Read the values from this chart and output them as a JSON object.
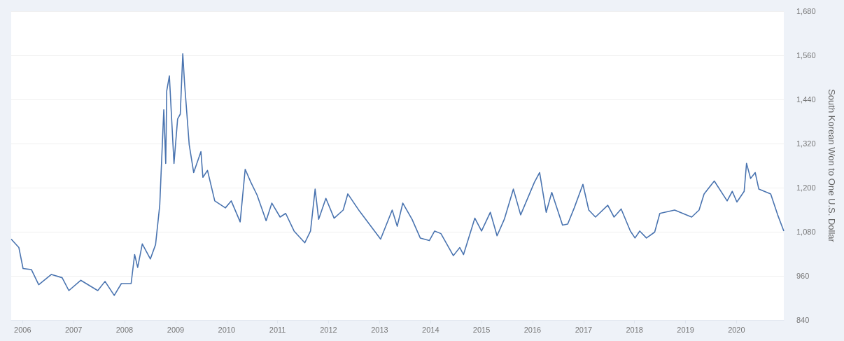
{
  "chart_data": {
    "type": "line",
    "y2label": "South Korean Won to One U.S. Dollar",
    "x": [
      "2005-10-11",
      "2005-12-05",
      "2006-01-04",
      "2006-03-05",
      "2006-04-26",
      "2006-07-26",
      "2006-10-11",
      "2006-11-28",
      "2007-02-21",
      "2007-06-23",
      "2007-08-14",
      "2007-10-19",
      "2007-12-09",
      "2008-02-17",
      "2008-03-13",
      "2008-04-04",
      "2008-05-07",
      "2008-07-04",
      "2008-08-10",
      "2008-09-09",
      "2008-10-08",
      "2008-10-22",
      "2008-10-29",
      "2008-11-17",
      "2008-12-20",
      "2009-01-15",
      "2009-02-03",
      "2009-02-21",
      "2009-03-05",
      "2009-04-08",
      "2009-05-10",
      "2009-07-01",
      "2009-07-15",
      "2009-08-17",
      "2009-10-08",
      "2009-12-23",
      "2010-02-03",
      "2010-04-08",
      "2010-05-14",
      "2010-06-23",
      "2010-08-07",
      "2010-10-11",
      "2010-11-21",
      "2011-01-19",
      "2011-02-28",
      "2011-04-29",
      "2011-07-15",
      "2011-08-25",
      "2011-09-27",
      "2011-10-22",
      "2011-12-13",
      "2012-02-10",
      "2012-04-15",
      "2012-05-18",
      "2012-08-10",
      "2013-01-08",
      "2013-04-01",
      "2013-05-07",
      "2013-06-16",
      "2013-08-21",
      "2013-10-19",
      "2013-12-23",
      "2014-01-30",
      "2014-03-16",
      "2014-06-13",
      "2014-07-29",
      "2014-08-25",
      "2014-11-14",
      "2015-01-01",
      "2015-03-05",
      "2015-04-22",
      "2015-06-13",
      "2015-08-17",
      "2015-10-08",
      "2016-01-15",
      "2016-02-21",
      "2016-04-08",
      "2016-05-18",
      "2016-08-03",
      "2016-09-09",
      "2016-10-26",
      "2016-12-27",
      "2017-02-07",
      "2017-03-27",
      "2017-06-23",
      "2017-08-07",
      "2017-09-27",
      "2017-12-02",
      "2018-01-04",
      "2018-02-07",
      "2018-03-27",
      "2018-05-25",
      "2018-07-01",
      "2018-10-15",
      "2019-02-14",
      "2019-04-08",
      "2019-05-14",
      "2019-07-26",
      "2019-10-26",
      "2019-12-02",
      "2020-01-04",
      "2020-02-25",
      "2020-03-13",
      "2020-04-11",
      "2020-05-14",
      "2020-06-09",
      "2020-09-02",
      "2020-10-22",
      "2020-12-05"
    ],
    "series": [
      {
        "color": "#4a74b0",
        "axis": "y2",
        "values": [
          1060,
          1037,
          980,
          977,
          936,
          964,
          955,
          920,
          948,
          920,
          945,
          907,
          939,
          939,
          1018,
          983,
          1047,
          1006,
          1045,
          1152,
          1412,
          1266,
          1463,
          1504,
          1266,
          1387,
          1400,
          1564,
          1488,
          1317,
          1241,
          1298,
          1228,
          1247,
          1164,
          1145,
          1164,
          1107,
          1250,
          1215,
          1180,
          1110,
          1158,
          1120,
          1130,
          1082,
          1050,
          1082,
          1196,
          1114,
          1171,
          1117,
          1139,
          1183,
          1136,
          1060,
          1139,
          1095,
          1158,
          1114,
          1063,
          1056,
          1082,
          1075,
          1015,
          1037,
          1018,
          1117,
          1082,
          1133,
          1069,
          1114,
          1196,
          1126,
          1215,
          1241,
          1133,
          1187,
          1098,
          1101,
          1145,
          1209,
          1139,
          1120,
          1152,
          1120,
          1142,
          1082,
          1063,
          1082,
          1063,
          1079,
          1130,
          1139,
          1120,
          1139,
          1183,
          1218,
          1164,
          1190,
          1161,
          1190,
          1266,
          1225,
          1241,
          1196,
          1183,
          1126,
          1082
        ]
      }
    ],
    "xlim": [
      "2005-10-11",
      "2020-12-05"
    ],
    "xticks": [
      "2006",
      "2007",
      "2008",
      "2009",
      "2010",
      "2011",
      "2012",
      "2013",
      "2014",
      "2015",
      "2016",
      "2017",
      "2018",
      "2019",
      "2020"
    ],
    "y2lim": [
      840,
      1680
    ],
    "y2ticks": [
      840,
      960,
      {
        "value": 1080,
        "label": "1,080"
      },
      {
        "value": 1200,
        "label": "1,200"
      },
      {
        "value": 1320,
        "label": "1,320"
      },
      {
        "value": 1440,
        "label": "1,440"
      },
      {
        "value": 1560,
        "label": "1,560"
      },
      {
        "value": 1680,
        "label": "1,680"
      }
    ],
    "grid": "y",
    "marker": "none",
    "line_style": "solid"
  }
}
